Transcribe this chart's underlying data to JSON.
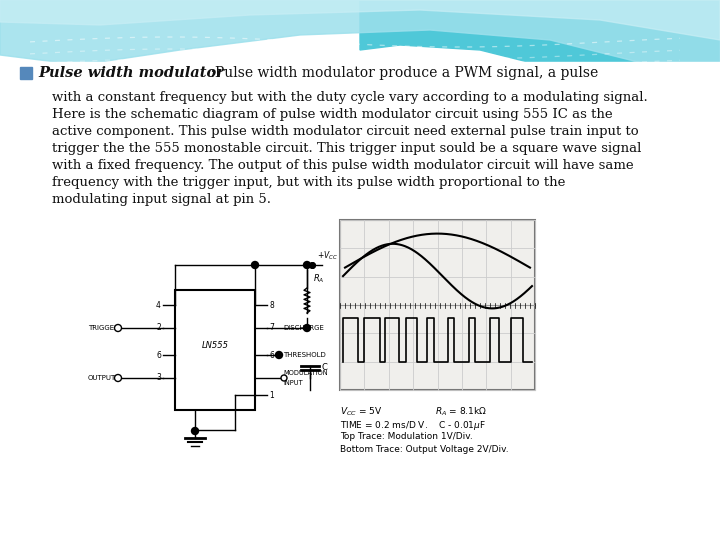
{
  "title_bold": "Pulse width modulator",
  "title_rest": " :Pulse width modulator produce a PWM signal, a pulse",
  "body_lines": [
    "with a constant frequency but with the duty cycle vary according to a modulating signal.",
    "Here is the schematic diagram of pulse width modulator circuit using 555 IC as the",
    "active component. This pulse width modulator circuit need external pulse train input to",
    "trigger the the 555 monostable circuit. This trigger input sould be a square wave signal",
    "with a fixed frequency. The output of this pulse width modulator circuit will have same",
    "frequency with the trigger input, but with its pulse width proportional to the",
    "modulating input signal at pin 5."
  ],
  "bg_white": "#ffffff",
  "bg_grey": "#e8e8e8",
  "wave_dark": "#4fc8d8",
  "wave_light": "#9de0ec",
  "wave_lighter": "#c8eef5",
  "text_color": "#111111",
  "bullet_color": "#5588bb",
  "osc_bg": "#f0efec",
  "osc_grid": "#cccccc",
  "cap_text_lines": [
    "V_{CC} = 5V              R_A = 8.1k\\Omega",
    "TIME = 0.2 ms/D V.    C - 0.01\\muF",
    "Top Trace: Modulation 1V/Div.",
    "Bottom Trace: Output Voltage 2V/Div."
  ],
  "fig_width": 7.2,
  "fig_height": 5.4
}
